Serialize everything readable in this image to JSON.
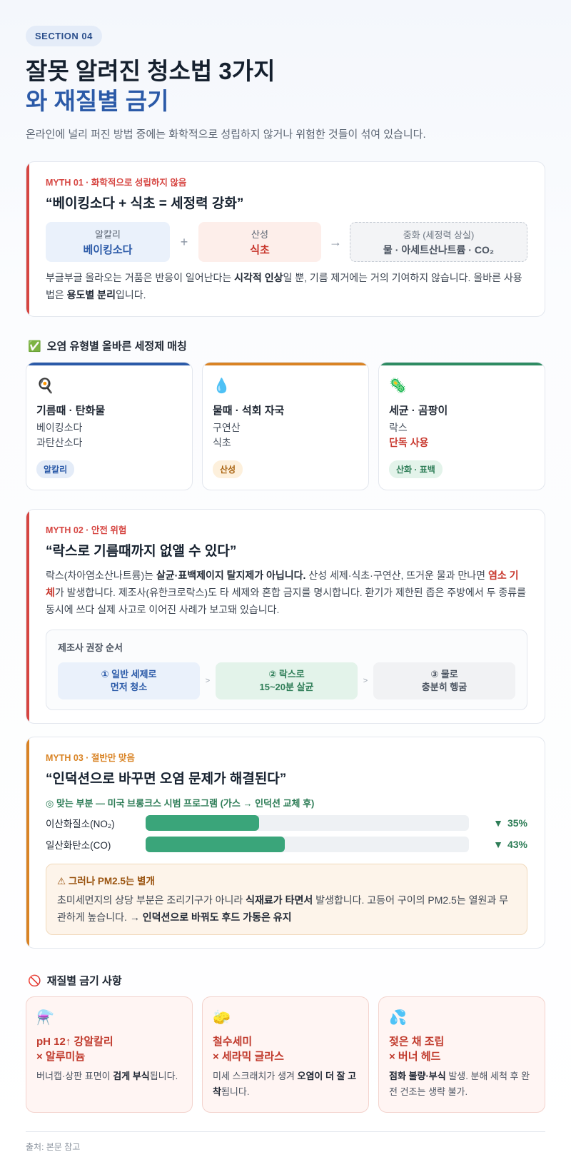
{
  "section": "SECTION 04",
  "title": {
    "line1": "잘못 알려진 청소법 3가지",
    "line2": "와 재질별 금기"
  },
  "subtitle": "온라인에 널리 퍼진 방법 중에는 화학적으로 성립하지 않거나 위험한 것들이 섞여 있습니다.",
  "myth1": {
    "tag": "MYTH 01 · 화학적으로 성립하지 않음",
    "heading": "“베이킹소다 + 식초 = 세정력 강화”",
    "boxes": [
      {
        "label": "알칼리",
        "value": "베이킹소다"
      },
      {
        "label": "산성",
        "value": "식초"
      },
      {
        "label": "중화 (세정력 상실)",
        "value": "물 · 아세트산나트륨 · CO₂"
      }
    ],
    "plus": "+",
    "arrow": "→",
    "body": [
      {
        "text": "부글부글 올라오는 거품은 반응이 일어난다는 "
      },
      {
        "text": "시각적 인상",
        "strong": true
      },
      {
        "text": "일 뿐, 기름 제거에는 거의 기여하지 않습니다. 올바른 사용법은 "
      },
      {
        "text": "용도별 분리",
        "strong": true
      },
      {
        "text": "입니다."
      }
    ]
  },
  "matching": {
    "icon": "✅",
    "heading": "오염 유형별 올바른 세정제 매칭",
    "cards": [
      {
        "icon": "🍳",
        "title": "기름때 · 탄화물",
        "items": [
          {
            "text": "베이킹소다"
          },
          {
            "text": "과탄산소다"
          }
        ],
        "badge": "알칼리"
      },
      {
        "icon": "💧",
        "title": "물때 · 석회 자국",
        "items": [
          {
            "text": "구연산"
          },
          {
            "text": "식초"
          }
        ],
        "badge": "산성"
      },
      {
        "icon": "🦠",
        "title": "세균 · 곰팡이",
        "items": [
          {
            "text": "락스"
          },
          {
            "text": "단독 사용",
            "color": "red",
            "strong": true
          }
        ],
        "badge": "산화 · 표백"
      }
    ]
  },
  "myth2": {
    "tag": "MYTH 02 · 안전 위험",
    "heading": "“락스로 기름때까지 없앨 수 있다”",
    "body": [
      {
        "text": "락스(차아염소산나트륨)는 "
      },
      {
        "text": "살균·표백제이지 탈지제가 아닙니다.",
        "strong": true
      },
      {
        "text": " 산성 세제·식초·구연산, 뜨거운 물과 만나면 "
      },
      {
        "text": "염소 기체",
        "strong": true,
        "color": "red"
      },
      {
        "text": "가 발생합니다. 제조사(유한크로락스)도 타 세제와 혼합 금지를 명시합니다. 환기가 제한된 좁은 주방에서 두 종류를 동시에 쓰다 실제 사고로 이어진 사례가 보고돼 있습니다."
      }
    ],
    "steps_title": "제조사 권장 순서",
    "separator": ">",
    "steps": [
      {
        "lines": [
          "① 일반 세제로",
          "먼저 청소"
        ]
      },
      {
        "lines": [
          "② 락스로",
          "15~20분 살균"
        ]
      },
      {
        "lines": [
          "③ 물로",
          "충분히 헹굼"
        ]
      }
    ]
  },
  "myth3": {
    "tag": "MYTH 03 · 절반만 맞음",
    "heading": "“인덕션으로 바꾸면 오염 문제가 해결된다”",
    "note": "◎ 맞는 부분 — 미국 브롱크스 시범 프로그램 (가스 → 인덕션 교체 후)",
    "trend_icon": "▼",
    "bars": [
      {
        "label": "이산화질소(NO₂)",
        "value": 35,
        "value_label": "35%"
      },
      {
        "label": "일산화탄소(CO)",
        "value": 43,
        "value_label": "43%"
      }
    ],
    "warning_title": "⚠ 그러나 PM2.5는 별개",
    "warning_body": [
      {
        "text": "초미세먼지의 상당 부분은 조리기구가 아니라 "
      },
      {
        "text": "식재료가 타면서",
        "strong": true
      },
      {
        "text": " 발생합니다. 고등어 구이의 PM2.5는 열원과 무관하게 높습니다. → "
      },
      {
        "text": "인덕션으로 바꿔도 후드 가동은 유지",
        "strong": true
      }
    ]
  },
  "materials": {
    "icon": "🚫",
    "heading": "재질별 금기 사항",
    "cards": [
      {
        "icon": "⚗️",
        "title": [
          "pH 12↑ 강알칼리",
          "× 알루미늄"
        ],
        "body": [
          {
            "text": "버너캡·상판 표면이 "
          },
          {
            "text": "검게 부식",
            "strong": true
          },
          {
            "text": "됩니다."
          }
        ]
      },
      {
        "icon": "🧽",
        "title": [
          "철수세미",
          "× 세라믹 글라스"
        ],
        "body": [
          {
            "text": "미세 스크래치가 생겨 "
          },
          {
            "text": "오염이 더 잘 고착",
            "strong": true
          },
          {
            "text": "됩니다."
          }
        ]
      },
      {
        "icon": "💦",
        "title": [
          "젖은 채 조립",
          "× 버너 헤드"
        ],
        "body": [
          {
            "text": "점화 불량·부식",
            "strong": true
          },
          {
            "text": " 발생. 분해 세척 후 완전 건조는 생략 불가."
          }
        ]
      }
    ]
  },
  "footer": "출처: 본문 참고"
}
